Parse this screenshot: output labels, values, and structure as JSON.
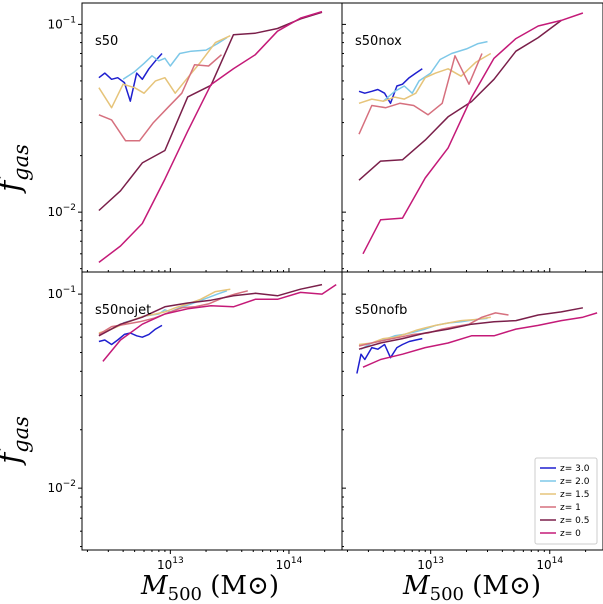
{
  "chart_data": {
    "type": "line",
    "xlabel": "M500 (M⊙)",
    "xlabel_parts": {
      "main": "M",
      "sub": "500",
      "unit": "(M⊙)"
    },
    "ylabel": "fgas",
    "ylabel_parts": {
      "main": "f",
      "sub": "gas"
    },
    "xscale": "log",
    "yscale": "log",
    "xlim": [
      1800000000000.0,
      280000000000000.0
    ],
    "ylim": [
      0.0048,
      0.13
    ],
    "x_ticks": [
      {
        "value": 10000000000000.0,
        "base": "10",
        "exp": "13"
      },
      {
        "value": 100000000000000.0,
        "base": "10",
        "exp": "14"
      }
    ],
    "y_ticks": [
      {
        "value": 0.01,
        "base": "10",
        "exp": "−2"
      },
      {
        "value": 0.1,
        "base": "10",
        "exp": "−1"
      }
    ],
    "legend_location": "lower-right",
    "colors": {
      "z= 3.0": "#1f1fcf",
      "z= 2.0": "#7ec8e8",
      "z= 1.5": "#e6c47a",
      "z= 1": "#d6707e",
      "z= 0.5": "#7a1f4a",
      "z= 0": "#c41a78"
    },
    "panels": [
      {
        "label": "s50",
        "series": [
          {
            "name": "z= 3.0",
            "x": [
              2500000000000.0,
              2800000000000.0,
              3200000000000.0,
              3600000000000.0,
              4100000000000.0,
              4600000000000.0,
              5200000000000.0,
              5800000000000.0,
              6600000000000.0,
              7500000000000.0,
              8500000000000.0
            ],
            "y": [
              0.052,
              0.055,
              0.051,
              0.052,
              0.049,
              0.039,
              0.055,
              0.051,
              0.058,
              0.064,
              0.07
            ]
          },
          {
            "name": "z= 2.0",
            "x": [
              4000000000000.0,
              5000000000000.0,
              6000000000000.0,
              7000000000000.0,
              8000000000000.0,
              9000000000000.0,
              10000000000000.0,
              12000000000000.0,
              15000000000000.0,
              20000000000000.0,
              25000000000000.0,
              30000000000000.0
            ],
            "y": [
              0.051,
              0.056,
              0.062,
              0.068,
              0.064,
              0.066,
              0.06,
              0.07,
              0.072,
              0.073,
              0.079,
              0.085
            ]
          },
          {
            "name": "z= 1.5",
            "x": [
              2500000000000.0,
              3200000000000.0,
              4000000000000.0,
              5000000000000.0,
              6000000000000.0,
              7500000000000.0,
              9000000000000.0,
              11000000000000.0,
              14000000000000.0,
              18000000000000.0,
              24000000000000.0,
              32000000000000.0
            ],
            "y": [
              0.046,
              0.036,
              0.048,
              0.046,
              0.043,
              0.05,
              0.052,
              0.043,
              0.052,
              0.063,
              0.08,
              0.087
            ]
          },
          {
            "name": "z= 1",
            "x": [
              2500000000000.0,
              3200000000000.0,
              4200000000000.0,
              5500000000000.0,
              7200000000000.0,
              9500000000000.0,
              12500000000000.0,
              16000000000000.0,
              21000000000000.0,
              27000000000000.0
            ],
            "y": [
              0.033,
              0.031,
              0.024,
              0.024,
              0.03,
              0.036,
              0.043,
              0.061,
              0.06,
              0.069
            ]
          },
          {
            "name": "z= 0.5",
            "x": [
              2500000000000.0,
              3800000000000.0,
              5800000000000.0,
              9000000000000.0,
              14000000000000.0,
              22000000000000.0,
              34000000000000.0,
              52000000000000.0,
              80000000000000.0,
              125000000000000.0,
              190000000000000.0
            ],
            "y": [
              0.0102,
              0.013,
              0.0183,
              0.0213,
              0.0411,
              0.0474,
              0.088,
              0.0898,
              0.0951,
              0.107,
              0.116
            ]
          },
          {
            "name": "z= 0",
            "x": [
              2500000000000.0,
              3800000000000.0,
              5800000000000.0,
              9000000000000.0,
              14000000000000.0,
              22000000000000.0,
              34000000000000.0,
              52000000000000.0,
              80000000000000.0,
              125000000000000.0,
              190000000000000.0
            ],
            "y": [
              0.0054,
              0.0066,
              0.0087,
              0.015,
              0.027,
              0.0478,
              0.058,
              0.069,
              0.092,
              0.108,
              0.117
            ]
          }
        ]
      },
      {
        "label": "s50nox",
        "series": [
          {
            "name": "z= 3.0",
            "x": [
              2500000000000.0,
              2800000000000.0,
              3200000000000.0,
              3600000000000.0,
              4100000000000.0,
              4600000000000.0,
              5200000000000.0,
              5800000000000.0,
              6600000000000.0,
              7500000000000.0,
              8500000000000.0
            ],
            "y": [
              0.044,
              0.043,
              0.044,
              0.045,
              0.043,
              0.038,
              0.047,
              0.048,
              0.052,
              0.055,
              0.058
            ]
          },
          {
            "name": "z= 2.0",
            "x": [
              4000000000000.0,
              5000000000000.0,
              6000000000000.0,
              7000000000000.0,
              8000000000000.0,
              10000000000000.0,
              12000000000000.0,
              15000000000000.0,
              20000000000000.0,
              25000000000000.0,
              30000000000000.0
            ],
            "y": [
              0.039,
              0.044,
              0.047,
              0.043,
              0.05,
              0.055,
              0.065,
              0.07,
              0.074,
              0.079,
              0.081
            ]
          },
          {
            "name": "z= 1.5",
            "x": [
              2500000000000.0,
              3200000000000.0,
              4000000000000.0,
              5000000000000.0,
              6000000000000.0,
              7500000000000.0,
              9000000000000.0,
              11000000000000.0,
              14000000000000.0,
              18000000000000.0,
              24000000000000.0,
              32000000000000.0
            ],
            "y": [
              0.038,
              0.04,
              0.039,
              0.041,
              0.04,
              0.043,
              0.052,
              0.055,
              0.058,
              0.053,
              0.063,
              0.07
            ]
          },
          {
            "name": "z= 1",
            "x": [
              2500000000000.0,
              3200000000000.0,
              4200000000000.0,
              5500000000000.0,
              7200000000000.0,
              9500000000000.0,
              12500000000000.0,
              16000000000000.0,
              21000000000000.0,
              27000000000000.0
            ],
            "y": [
              0.026,
              0.037,
              0.036,
              0.038,
              0.037,
              0.033,
              0.038,
              0.068,
              0.048,
              0.07
            ]
          },
          {
            "name": "z= 0.5",
            "x": [
              2500000000000.0,
              3800000000000.0,
              5800000000000.0,
              9000000000000.0,
              14000000000000.0,
              22000000000000.0,
              34000000000000.0,
              52000000000000.0,
              80000000000000.0,
              125000000000000.0
            ],
            "y": [
              0.0148,
              0.0187,
              0.019,
              0.0242,
              0.0322,
              0.0388,
              0.051,
              0.072,
              0.085,
              0.105
            ]
          },
          {
            "name": "z= 0",
            "x": [
              2700000000000.0,
              3800000000000.0,
              5800000000000.0,
              9000000000000.0,
              14000000000000.0,
              22000000000000.0,
              34000000000000.0,
              52000000000000.0,
              80000000000000.0,
              125000000000000.0,
              190000000000000.0
            ],
            "y": [
              0.006,
              0.0091,
              0.0093,
              0.0152,
              0.022,
              0.0408,
              0.066,
              0.084,
              0.098,
              0.105,
              0.115
            ]
          }
        ]
      },
      {
        "label": "s50nojet",
        "series": [
          {
            "name": "z= 3.0",
            "x": [
              2500000000000.0,
              2800000000000.0,
              3200000000000.0,
              3600000000000.0,
              4100000000000.0,
              4600000000000.0,
              5200000000000.0,
              5800000000000.0,
              6600000000000.0,
              7500000000000.0,
              8500000000000.0
            ],
            "y": [
              0.057,
              0.058,
              0.055,
              0.058,
              0.062,
              0.063,
              0.061,
              0.06,
              0.062,
              0.066,
              0.069
            ]
          },
          {
            "name": "z= 2.0",
            "x": [
              4000000000000.0,
              5000000000000.0,
              6000000000000.0,
              7000000000000.0,
              8000000000000.0,
              9000000000000.0,
              10000000000000.0,
              12000000000000.0,
              15000000000000.0,
              20000000000000.0,
              25000000000000.0,
              30000000000000.0
            ],
            "y": [
              0.071,
              0.074,
              0.077,
              0.078,
              0.079,
              0.083,
              0.081,
              0.085,
              0.089,
              0.095,
              0.1,
              0.104
            ]
          },
          {
            "name": "z= 1.5",
            "x": [
              2500000000000.0,
              3200000000000.0,
              4000000000000.0,
              5000000000000.0,
              6000000000000.0,
              7500000000000.0,
              9000000000000.0,
              11000000000000.0,
              14000000000000.0,
              18000000000000.0,
              24000000000000.0,
              32000000000000.0
            ],
            "y": [
              0.063,
              0.066,
              0.07,
              0.074,
              0.077,
              0.079,
              0.081,
              0.085,
              0.089,
              0.094,
              0.103,
              0.106
            ]
          },
          {
            "name": "z= 1",
            "x": [
              2500000000000.0,
              3200000000000.0,
              4200000000000.0,
              5500000000000.0,
              7200000000000.0,
              9500000000000.0,
              12500000000000.0,
              16000000000000.0,
              21000000000000.0,
              27000000000000.0,
              35000000000000.0,
              45000000000000.0
            ],
            "y": [
              0.062,
              0.068,
              0.07,
              0.072,
              0.075,
              0.08,
              0.085,
              0.086,
              0.089,
              0.095,
              0.1,
              0.104
            ]
          },
          {
            "name": "z= 0.5",
            "x": [
              2500000000000.0,
              3800000000000.0,
              5800000000000.0,
              9000000000000.0,
              14000000000000.0,
              22000000000000.0,
              34000000000000.0,
              52000000000000.0,
              80000000000000.0,
              125000000000000.0,
              190000000000000.0
            ],
            "y": [
              0.061,
              0.07,
              0.076,
              0.086,
              0.09,
              0.093,
              0.098,
              0.101,
              0.098,
              0.106,
              0.112
            ]
          },
          {
            "name": "z= 0",
            "x": [
              2700000000000.0,
              3800000000000.0,
              5800000000000.0,
              9000000000000.0,
              14000000000000.0,
              22000000000000.0,
              34000000000000.0,
              52000000000000.0,
              80000000000000.0,
              125000000000000.0,
              190000000000000.0,
              250000000000000.0
            ],
            "y": [
              0.045,
              0.058,
              0.07,
              0.079,
              0.084,
              0.087,
              0.086,
              0.094,
              0.094,
              0.102,
              0.1,
              0.112
            ]
          }
        ]
      },
      {
        "label": "s50nofb",
        "series": [
          {
            "name": "z= 3.0",
            "x": [
              2400000000000.0,
              2600000000000.0,
              2800000000000.0,
              3200000000000.0,
              3600000000000.0,
              4100000000000.0,
              4600000000000.0,
              5200000000000.0,
              5800000000000.0,
              6600000000000.0,
              7500000000000.0,
              8500000000000.0
            ],
            "y": [
              0.039,
              0.049,
              0.046,
              0.053,
              0.052,
              0.055,
              0.047,
              0.053,
              0.055,
              0.057,
              0.058,
              0.059
            ]
          },
          {
            "name": "z= 2.0",
            "x": [
              2600000000000.0,
              3200000000000.0,
              4000000000000.0,
              5000000000000.0,
              6000000000000.0,
              7500000000000.0,
              9000000000000.0,
              11000000000000.0,
              14000000000000.0,
              18000000000000.0,
              24000000000000.0,
              30000000000000.0
            ],
            "y": [
              0.052,
              0.056,
              0.058,
              0.061,
              0.062,
              0.064,
              0.066,
              0.069,
              0.071,
              0.072,
              0.074,
              0.075
            ]
          },
          {
            "name": "z= 1.5",
            "x": [
              2500000000000.0,
              3200000000000.0,
              4000000000000.0,
              5000000000000.0,
              6000000000000.0,
              7500000000000.0,
              9000000000000.0,
              11000000000000.0,
              14000000000000.0,
              18000000000000.0,
              24000000000000.0,
              32000000000000.0
            ],
            "y": [
              0.055,
              0.056,
              0.059,
              0.06,
              0.062,
              0.065,
              0.067,
              0.069,
              0.071,
              0.073,
              0.074,
              0.076
            ]
          },
          {
            "name": "z= 1",
            "x": [
              2500000000000.0,
              3200000000000.0,
              4200000000000.0,
              5500000000000.0,
              7200000000000.0,
              9500000000000.0,
              12500000000000.0,
              16000000000000.0,
              21000000000000.0,
              27000000000000.0,
              35000000000000.0,
              45000000000000.0
            ],
            "y": [
              0.054,
              0.056,
              0.058,
              0.06,
              0.062,
              0.063,
              0.066,
              0.068,
              0.07,
              0.076,
              0.08,
              0.078
            ]
          },
          {
            "name": "z= 0.5",
            "x": [
              2500000000000.0,
              3800000000000.0,
              5800000000000.0,
              9000000000000.0,
              14000000000000.0,
              22000000000000.0,
              34000000000000.0,
              52000000000000.0,
              80000000000000.0,
              125000000000000.0,
              190000000000000.0
            ],
            "y": [
              0.052,
              0.056,
              0.059,
              0.063,
              0.066,
              0.07,
              0.072,
              0.073,
              0.078,
              0.081,
              0.085
            ]
          },
          {
            "name": "z= 0",
            "x": [
              2700000000000.0,
              3800000000000.0,
              5800000000000.0,
              9000000000000.0,
              14000000000000.0,
              22000000000000.0,
              34000000000000.0,
              52000000000000.0,
              80000000000000.0,
              125000000000000.0,
              190000000000000.0,
              250000000000000.0
            ],
            "y": [
              0.042,
              0.046,
              0.049,
              0.053,
              0.056,
              0.061,
              0.061,
              0.066,
              0.069,
              0.073,
              0.076,
              0.08
            ]
          }
        ]
      }
    ]
  }
}
